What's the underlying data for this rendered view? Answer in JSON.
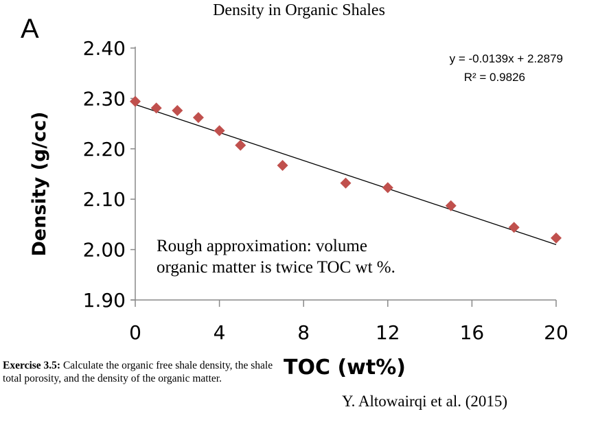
{
  "chart_data": {
    "type": "scatter",
    "title": "Density in Organic Shales",
    "panel_label": "A",
    "xlabel": "TOC (wt%)",
    "ylabel": "Density (g/cc)",
    "xlim": [
      0,
      20
    ],
    "ylim": [
      1.9,
      2.4
    ],
    "xticks": [
      "0",
      "4",
      "8",
      "12",
      "16",
      "20"
    ],
    "yticks": [
      "1.90",
      "2.00",
      "2.10",
      "2.20",
      "2.30",
      "2.40"
    ],
    "grid": false,
    "marker_color": "#c0504d",
    "x": [
      0,
      1,
      2,
      3,
      4,
      5,
      7,
      10,
      12,
      15,
      18,
      20
    ],
    "y": [
      2.294,
      2.281,
      2.276,
      2.262,
      2.236,
      2.207,
      2.167,
      2.132,
      2.123,
      2.087,
      2.044,
      2.023
    ],
    "trendline": {
      "slope": -0.0139,
      "intercept": 2.2879,
      "equation": "y = -0.0139x + 2.2879",
      "r2": "R² = 0.9826"
    },
    "annotation": [
      "Rough approximation: volume",
      "organic matter is twice TOC wt %."
    ]
  },
  "caption": {
    "exercise_label": "Exercise 3.5:",
    "exercise_text": " Calculate the organic free shale density, the shale total porosity, and the density of the organic matter.",
    "credit": "Y. Altowairqi et al. (2015)"
  }
}
